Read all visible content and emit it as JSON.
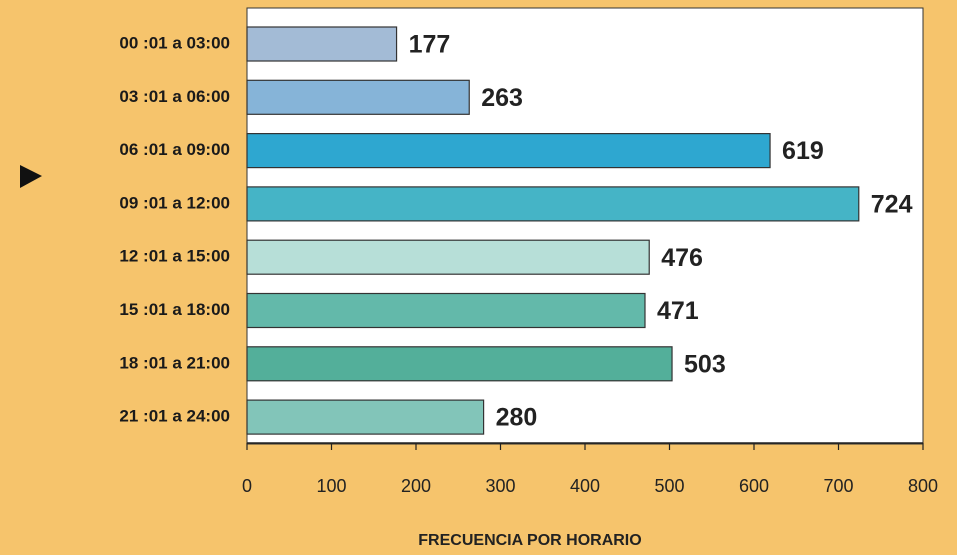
{
  "chart_data": {
    "type": "bar",
    "orientation": "horizontal",
    "categories": [
      "00 :01 a 03:00",
      "03 :01 a 06:00",
      "06 :01 a 09:00",
      "09 :01 a 12:00",
      "12 :01 a 15:00",
      "15 :01 a 18:00",
      "18 :01 a 21:00",
      "21 :01 a 24:00"
    ],
    "values": [
      177,
      263,
      619,
      724,
      476,
      471,
      503,
      280
    ],
    "colors": [
      "#a3bbd6",
      "#86b4d8",
      "#2ea7d0",
      "#45b4c6",
      "#b7dfd8",
      "#63b9aa",
      "#53af9a",
      "#82c5b9"
    ],
    "xlabel": "FRECUENCIA POR HORARIO",
    "xlim": [
      0,
      800
    ],
    "xticks": [
      0,
      100,
      200,
      300,
      400,
      500,
      600,
      700,
      800
    ],
    "grid": false
  }
}
